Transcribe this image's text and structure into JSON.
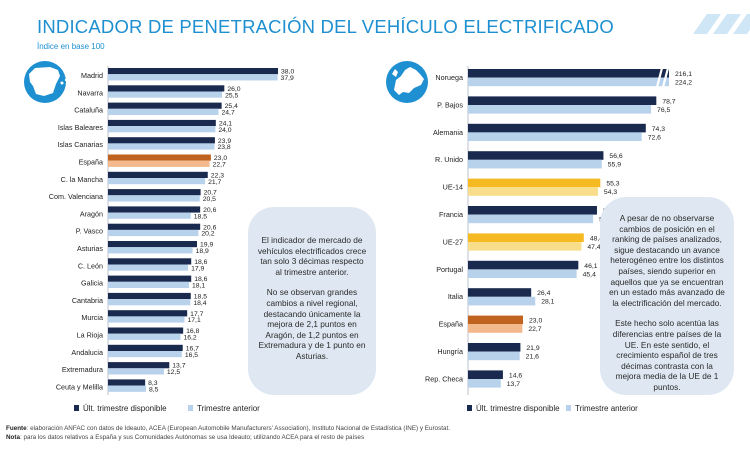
{
  "title": "INDICADOR DE PENETRACIÓN DEL VEHÍCULO ELECTRIFICADO",
  "subtitle": "Índice en base 100",
  "colors": {
    "primary": "#1a2a4f",
    "secondary": "#b8d2ec",
    "spain_primary": "#c0631f",
    "spain_secondary": "#f3b98c",
    "eu_primary": "#f5b921",
    "eu_secondary": "#f8dd8a",
    "title": "#1e8fd0"
  },
  "chart_data": [
    {
      "type": "bar",
      "orientation": "horizontal",
      "title": "Comunidades Autónomas",
      "categories": [
        "Madrid",
        "Navarra",
        "Cataluña",
        "Islas Baleares",
        "Islas Canarias",
        "España",
        "C. la Mancha",
        "Com. Valenciana",
        "Aragón",
        "P. Vasco",
        "Asturias",
        "C. León",
        "Galicia",
        "Cantabria",
        "Murcia",
        "La Rioja",
        "Andalucia",
        "Extremadura",
        "Ceuta y Melilla"
      ],
      "series": [
        {
          "name": "Últ. trimestre disponible",
          "values": [
            38.0,
            26.0,
            25.4,
            24.1,
            23.9,
            23.0,
            22.3,
            20.7,
            20.6,
            20.6,
            19.9,
            18.6,
            18.6,
            18.5,
            17.7,
            16.8,
            16.7,
            13.7,
            8.3
          ]
        },
        {
          "name": "Trimestre anterior",
          "values": [
            37.9,
            25.5,
            24.7,
            24.0,
            23.8,
            22.7,
            21.7,
            20.5,
            18.5,
            20.2,
            18.9,
            17.9,
            18.1,
            18.4,
            17.1,
            16.2,
            16.5,
            12.5,
            8.5
          ]
        }
      ],
      "labels": {
        "current": [
          "38,0",
          "26,0",
          "25,4",
          "24,1",
          "23,9",
          "23,0",
          "22,3",
          "20,7",
          "20,6",
          "20,6",
          "19,9",
          "18,6",
          "18,6",
          "18,5",
          "17,7",
          "16,8",
          "16,7",
          "13,7",
          "8,3"
        ],
        "previous": [
          "37,9",
          "25,5",
          "24,7",
          "24,0",
          "23,8",
          "22,7",
          "21,7",
          "20,5",
          "18,5",
          "20,2",
          "18,9",
          "17,9",
          "18,1",
          "18,4",
          "17,1",
          "16,2",
          "16,5",
          "12,5",
          "8,5"
        ]
      },
      "highlight": [
        "España"
      ],
      "xlim": [
        0,
        38
      ]
    },
    {
      "type": "bar",
      "orientation": "horizontal",
      "title": "Países",
      "categories": [
        "Noruega",
        "P. Bajos",
        "Alemania",
        "R. Unido",
        "UE-14",
        "Francia",
        "UE-27",
        "Portugal",
        "Italia",
        "España",
        "Hungría",
        "Rep. Checa"
      ],
      "series": [
        {
          "name": "Últ. trimestre disponible",
          "values": [
            216.1,
            78.7,
            74.3,
            56.6,
            55.3,
            53.9,
            48.4,
            46.1,
            26.4,
            23.0,
            21.9,
            14.6
          ]
        },
        {
          "name": "Trimestre anterior",
          "values": [
            224.2,
            76.5,
            72.6,
            55.9,
            54.3,
            52.3,
            47.4,
            45.4,
            28.1,
            22.7,
            21.6,
            13.7
          ]
        }
      ],
      "labels": {
        "current": [
          "216,1",
          "78,7",
          "74,3",
          "56,6",
          "55,3",
          "53,9",
          "48,4",
          "46,1",
          "26,4",
          "23,0",
          "21,9",
          "14,6"
        ],
        "previous": [
          "224,2",
          "76,5",
          "72,6",
          "55,9",
          "54,3",
          "52,3",
          "47,4",
          "45,4",
          "28,1",
          "22,7",
          "21,6",
          "13,7"
        ]
      },
      "highlight_spain": [
        "España"
      ],
      "highlight_eu": [
        "UE-14",
        "UE-27"
      ],
      "axis_break": true,
      "xlim": [
        0,
        84
      ]
    }
  ],
  "legend": {
    "current": "Últ. trimestre disponible",
    "previous": "Trimestre anterior"
  },
  "note_left": [
    "El indicador de mercado de vehículos electrificados crece tan solo 3 décimas respecto al trimestre anterior.",
    "No se observan grandes cambios a nivel regional, destacando únicamente la mejora de 2,1 puntos en Aragón, de 1,2 puntos en Extremadura y de 1 punto en Asturias."
  ],
  "note_right": [
    "A pesar de no observarse cambios de posición en el ranking de países analizados, sigue destacando un avance heterogéneo entre los distintos países, siendo superior en aquellos que ya se encuentran en un estado más avanzado de la electrificación del mercado.",
    "Este hecho solo acentúa las diferencias entre países de la UE. En este sentido, el crecimiento español de tres décimas contrasta con la mejora media de la UE de 1 puntos."
  ],
  "footer": {
    "source_label": "Fuente",
    "source_text": ": elaboración ANFAC con datos de Ideauto, ACEA (European Automobile Manufacturers' Association), Instituto Nacional de Estadística (INE) y Eurostat.",
    "note_label": "Nota",
    "note_text": ": para los datos relativos a España y sus Comunidades Autónomas se usa Ideauto; utilizando ACEA para el resto de países"
  }
}
